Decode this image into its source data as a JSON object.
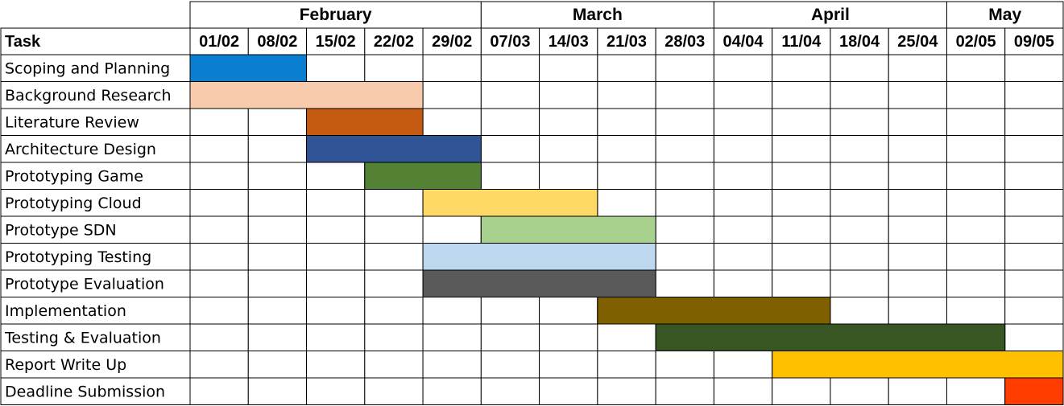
{
  "chart_data": {
    "type": "gantt",
    "task_header": "Task",
    "months": [
      {
        "label": "February",
        "start": 0,
        "span": 5
      },
      {
        "label": "March",
        "start": 5,
        "span": 4
      },
      {
        "label": "April",
        "start": 9,
        "span": 4
      },
      {
        "label": "May",
        "start": 13,
        "span": 2
      }
    ],
    "weeks": [
      "01/02",
      "08/02",
      "15/02",
      "22/02",
      "29/02",
      "07/03",
      "14/03",
      "21/03",
      "28/03",
      "04/04",
      "11/04",
      "18/04",
      "25/04",
      "02/05",
      "09/05"
    ],
    "tasks": [
      {
        "name": "Scoping and Planning",
        "start": "01/02",
        "end": "08/02",
        "color": "#0A7FD1"
      },
      {
        "name": "Background Research",
        "start": "01/02",
        "end": "22/02",
        "color": "#F8CBAD"
      },
      {
        "name": "Literature Review",
        "start": "15/02",
        "end": "22/02",
        "color": "#C55A11"
      },
      {
        "name": "Architecture Design",
        "start": "15/02",
        "end": "29/02",
        "color": "#2F5597"
      },
      {
        "name": "Prototyping Game",
        "start": "22/02",
        "end": "29/02",
        "color": "#548235"
      },
      {
        "name": "Prototyping Cloud",
        "start": "29/02",
        "end": "14/03",
        "color": "#FFD966"
      },
      {
        "name": "Prototype SDN",
        "start": "07/03",
        "end": "21/03",
        "color": "#A9D18E"
      },
      {
        "name": "Prototyping Testing",
        "start": "29/02",
        "end": "21/03",
        "color": "#BDD7EE"
      },
      {
        "name": "Prototype Evaluation",
        "start": "29/02",
        "end": "21/03",
        "color": "#595959"
      },
      {
        "name": "Implementation",
        "start": "21/03",
        "end": "11/04",
        "color": "#7F6000"
      },
      {
        "name": "Testing & Evaluation",
        "start": "28/03",
        "end": "02/05",
        "color": "#375623"
      },
      {
        "name": "Report Write Up",
        "start": "11/04",
        "end": "09/05",
        "color": "#FFC000"
      },
      {
        "name": "Deadline Submission",
        "start": "09/05",
        "end": "09/05",
        "color": "#FF3D00"
      }
    ]
  }
}
